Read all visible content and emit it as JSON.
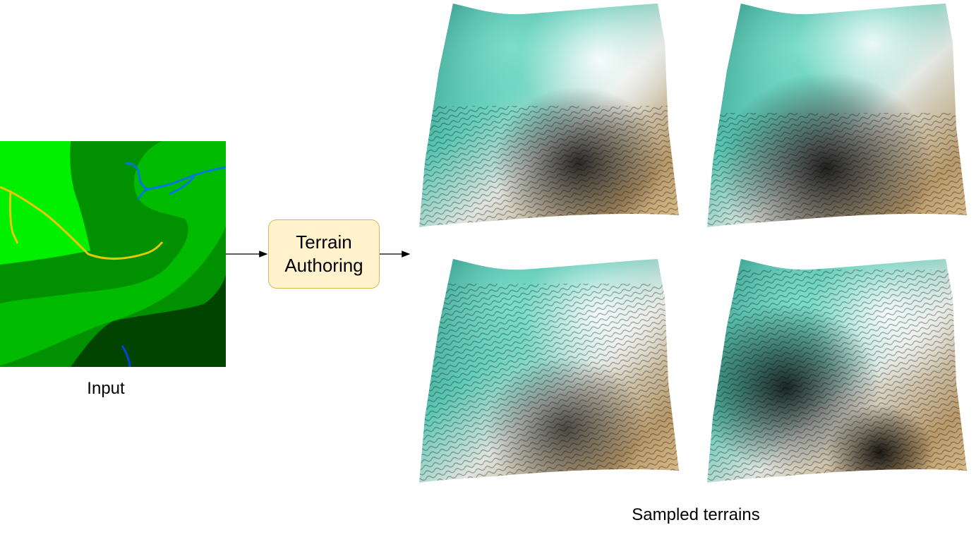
{
  "input": {
    "caption": "Input"
  },
  "process": {
    "line1": "Terrain",
    "line2": "Authoring"
  },
  "output": {
    "caption": "Sampled terrains"
  },
  "colors": {
    "region_bright": "#00f000",
    "region_mid": "#00bb00",
    "region_dark": "#009000",
    "region_darkest": "#004400",
    "river": "#0077dd",
    "ridge": "#e8c800",
    "box_fill": "#fff2cc",
    "box_border": "#d6b656",
    "terrain_teal": "#1f9985",
    "terrain_sand": "#d8b884"
  },
  "terrains": [
    {
      "id": "sample-1"
    },
    {
      "id": "sample-2"
    },
    {
      "id": "sample-3"
    },
    {
      "id": "sample-4"
    }
  ]
}
